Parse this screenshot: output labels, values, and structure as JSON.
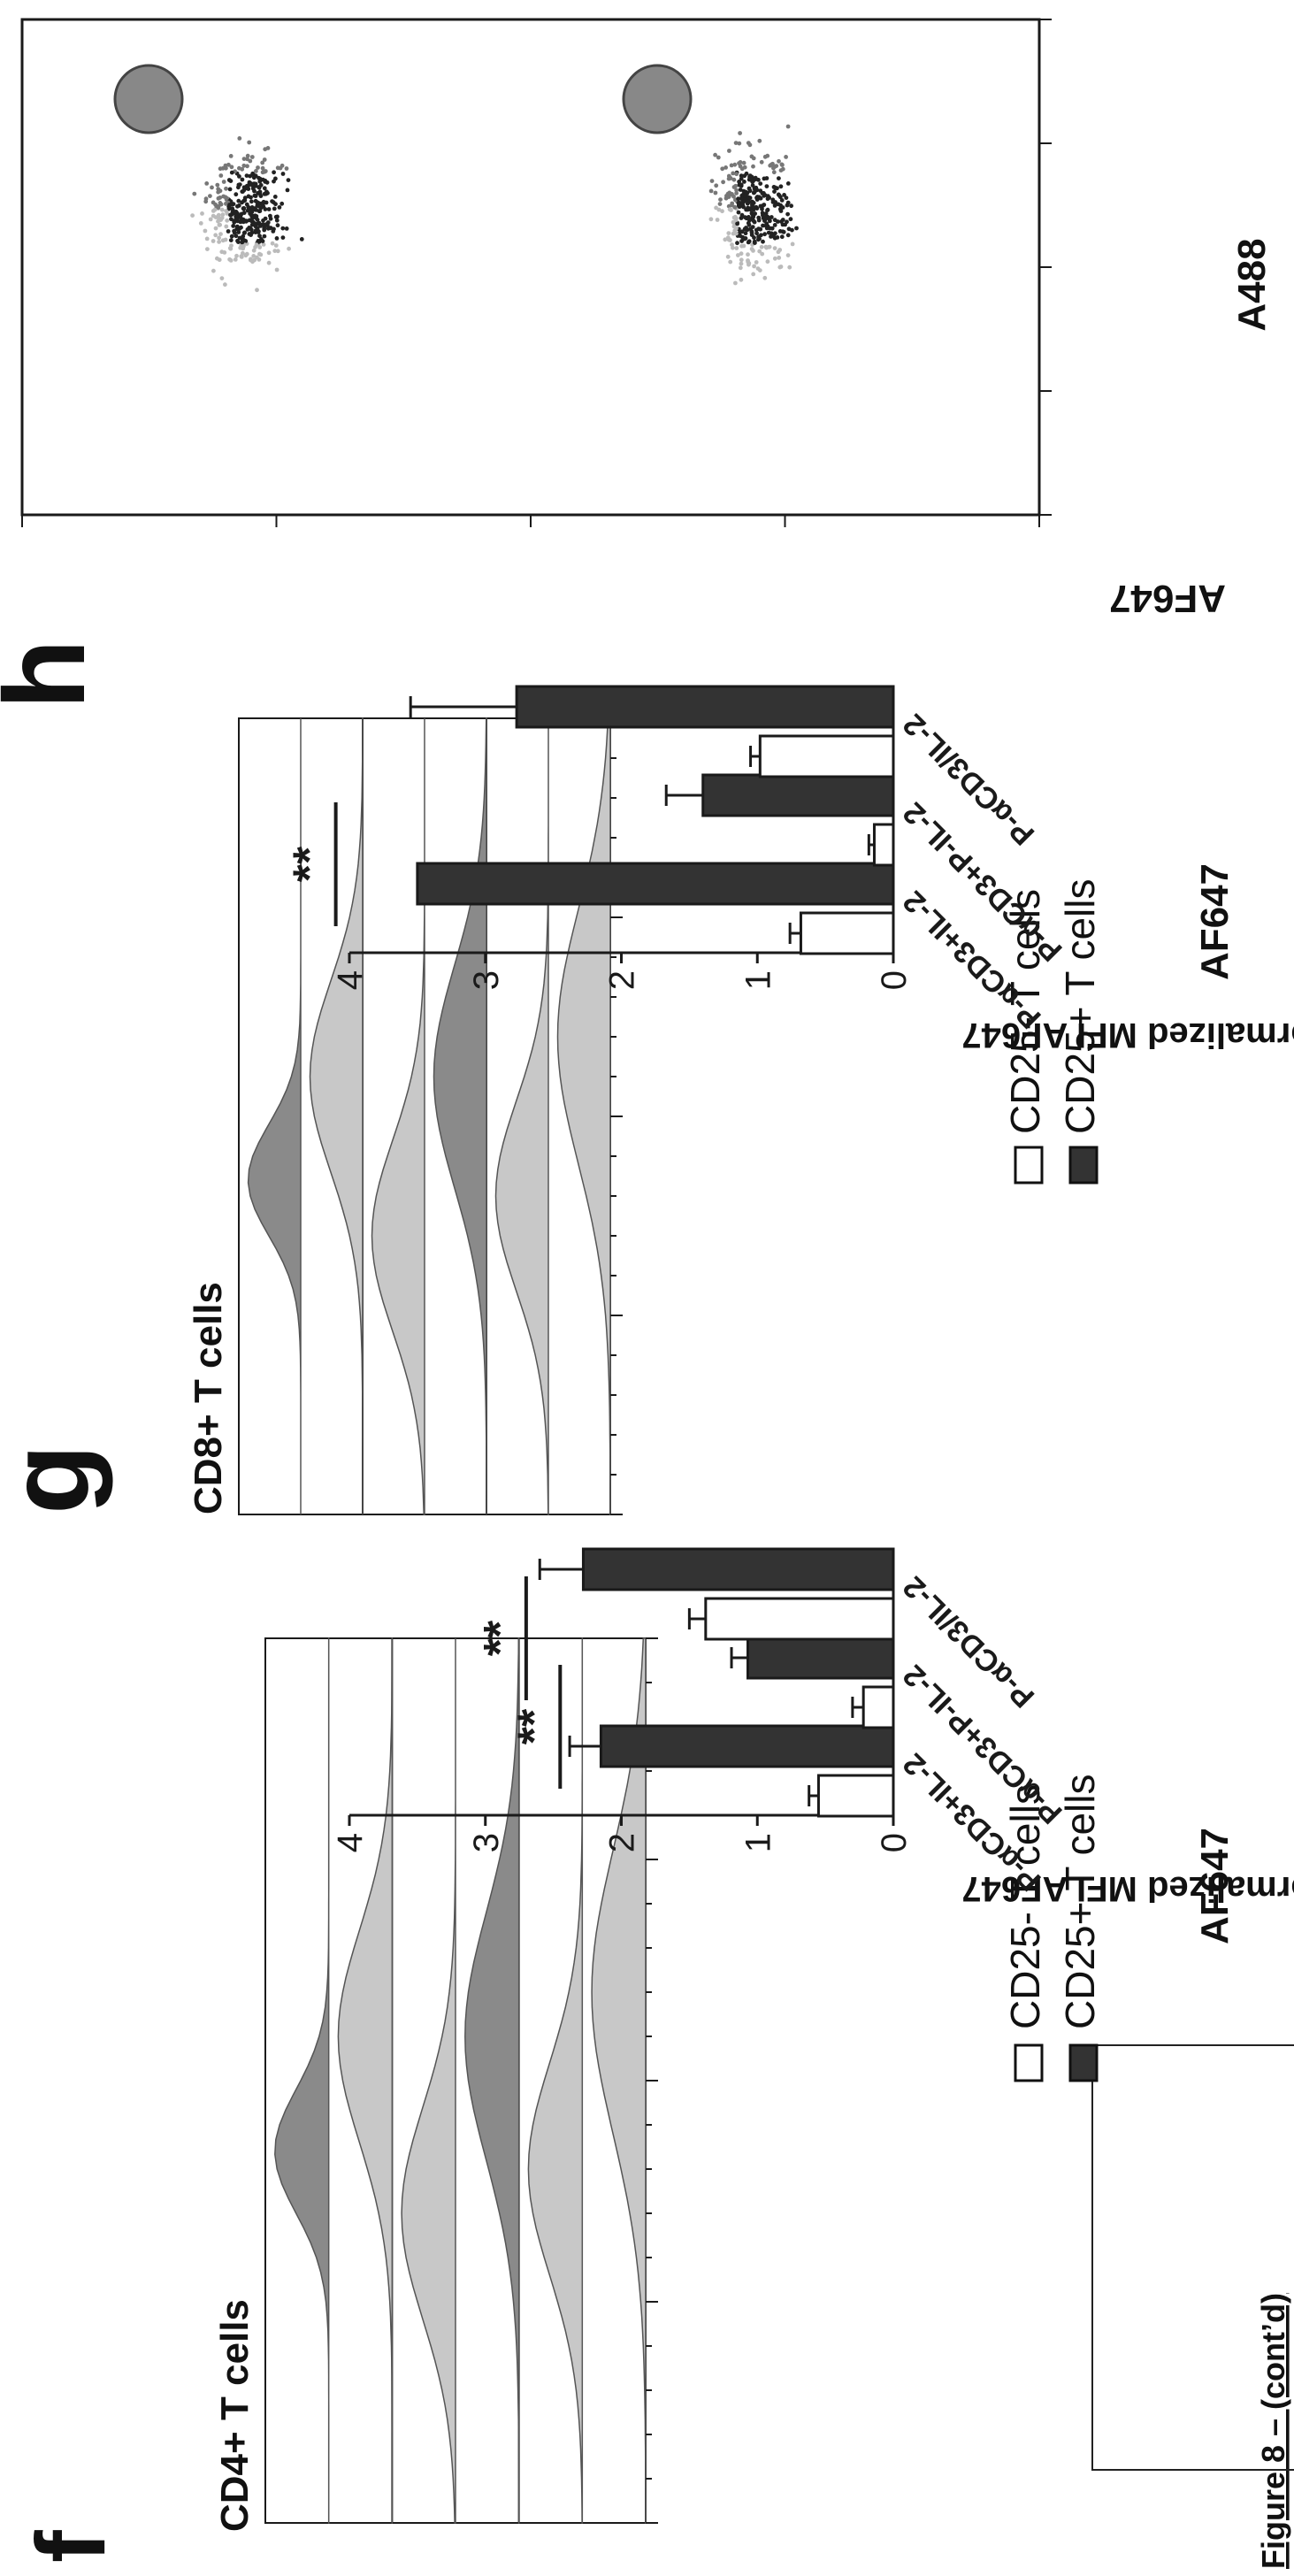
{
  "figure_caption": "Figure 8 – (cont’d)",
  "panels": {
    "f": {
      "letter": "f",
      "histogram_title": "CD4+ T cells",
      "histogram_xlabel": "AF647"
    },
    "g": {
      "letter": "g",
      "histogram_title": "CD8+ T cells",
      "histogram_xlabel": "AF647"
    },
    "h": {
      "letter": "h",
      "scatter_xlabel": "A488",
      "scatter_ylabel": "AF647"
    }
  },
  "legend": {
    "cd25_neg": "CD25- T cells",
    "cd25_pos": "CD25+ T cells"
  },
  "significance_label": "**",
  "colors": {
    "cd25_neg_fill": "#ffffff",
    "cd25_pos_fill": "#333333",
    "hist_light": "#c8c8c8",
    "hist_dark": "#8a8a8a",
    "ink": "#1a1a1a"
  },
  "chart_data": [
    {
      "type": "bar",
      "panel": "f",
      "categories": [
        "P-αCD3+IL-2",
        "P-αCD3+P-IL-2",
        "P-αCD3/IL-2"
      ],
      "ylabel": "Normalized MFI AF647",
      "ylim": [
        0,
        4
      ],
      "yticks": [
        0,
        1,
        2,
        3,
        4
      ],
      "series": [
        {
          "name": "CD25- T cells",
          "values": [
            0.55,
            0.22,
            1.38
          ],
          "errors": [
            0.07,
            0.08,
            0.12
          ]
        },
        {
          "name": "CD25+ T cells",
          "values": [
            2.15,
            1.07,
            2.28
          ],
          "errors": [
            0.23,
            0.12,
            0.32
          ]
        }
      ],
      "significance": [
        {
          "label": "**",
          "from": 0,
          "to": 1,
          "level": 2.45
        },
        {
          "label": "**",
          "from": 1,
          "to": 2,
          "level": 2.7
        }
      ],
      "legend_position": "top"
    },
    {
      "type": "bar",
      "panel": "h",
      "categories": [
        "P-αCD3+IL-2",
        "P-αCD3+P-IL-2",
        "P-αCD3/IL-2"
      ],
      "ylabel": "Normalized MFI AF647",
      "ylim": [
        0,
        4
      ],
      "yticks": [
        0,
        1,
        2,
        3,
        4
      ],
      "series": [
        {
          "name": "CD25- T cells",
          "values": [
            0.68,
            0.14,
            0.98
          ],
          "errors": [
            0.08,
            0.04,
            0.07
          ]
        },
        {
          "name": "CD25+ T cells",
          "values": [
            3.5,
            1.4,
            2.77
          ],
          "errors": [
            0.0,
            0.27,
            0.78
          ]
        }
      ],
      "significance": [
        {
          "label": "**",
          "from": 0,
          "to": 1,
          "level": 4.1
        }
      ],
      "legend_position": "top"
    },
    {
      "type": "histogram",
      "panel": "f",
      "title": "CD4+ T cells",
      "xlabel": "AF647",
      "stacks": 3
    },
    {
      "type": "histogram",
      "panel": "g",
      "title": "CD8+ T cells",
      "xlabel": "AF647",
      "stacks": 3
    },
    {
      "type": "scatter",
      "panel": "h",
      "xlabel": "A488",
      "ylabel": "AF647",
      "populations": 2
    }
  ]
}
